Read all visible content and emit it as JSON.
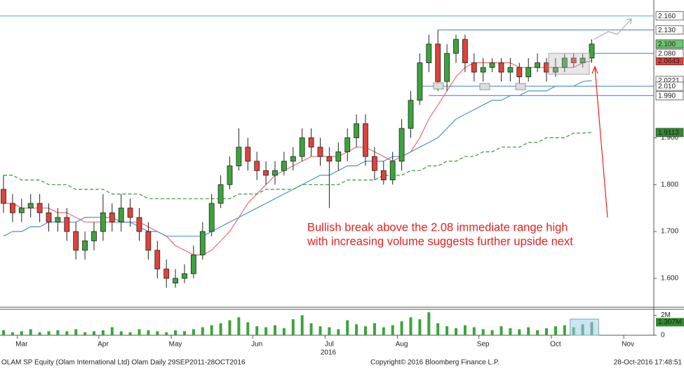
{
  "chart_data": {
    "type": "candlestick",
    "categories": [
      null,
      null,
      "Mar",
      null,
      null,
      null,
      null,
      null,
      null,
      null,
      null,
      "Apr",
      null,
      null,
      null,
      null,
      null,
      null,
      null,
      "May",
      null,
      null,
      null,
      null,
      null,
      null,
      null,
      null,
      "Jun",
      null,
      null,
      null,
      null,
      null,
      null,
      null,
      "Jul",
      null,
      null,
      null,
      null,
      null,
      null,
      null,
      "Aug",
      null,
      null,
      null,
      null,
      null,
      null,
      null,
      null,
      "Sep",
      null,
      null,
      null,
      null,
      null,
      null,
      null,
      "Oct",
      null,
      null,
      null,
      null,
      null,
      null,
      null,
      "Nov",
      null,
      null
    ],
    "year_label": "2016",
    "open": [
      1.79,
      1.76,
      1.74,
      1.75,
      1.76,
      1.74,
      1.72,
      1.73,
      1.7,
      1.66,
      1.68,
      1.7,
      1.74,
      1.72,
      1.75,
      1.73,
      1.7,
      1.66,
      1.62,
      1.59,
      1.6,
      1.61,
      1.65,
      1.7,
      1.76,
      1.8,
      1.84,
      1.88,
      1.85,
      1.83,
      1.82,
      1.83,
      1.85,
      1.86,
      1.9,
      1.88,
      1.86,
      1.85,
      1.87,
      1.9,
      1.93,
      1.86,
      1.83,
      1.81,
      1.85,
      1.92,
      1.98,
      2.06,
      2.1,
      2.02,
      2.08,
      2.11,
      2.06,
      2.04,
      2.05,
      2.06,
      2.04,
      2.05,
      2.03,
      2.05,
      2.06,
      2.04,
      2.05,
      2.07,
      2.06,
      2.07,
      null,
      null,
      null,
      null,
      null,
      null
    ],
    "high": [
      1.82,
      1.78,
      1.77,
      1.78,
      1.78,
      1.76,
      1.75,
      1.75,
      1.72,
      1.7,
      1.72,
      1.78,
      1.76,
      1.78,
      1.77,
      1.75,
      1.72,
      1.68,
      1.64,
      1.62,
      1.63,
      1.67,
      1.72,
      1.78,
      1.82,
      1.86,
      1.92,
      1.9,
      1.87,
      1.85,
      1.85,
      1.87,
      1.88,
      1.92,
      1.92,
      1.9,
      1.88,
      1.89,
      1.92,
      1.95,
      1.95,
      1.88,
      1.85,
      1.87,
      1.94,
      2.0,
      2.08,
      2.12,
      2.13,
      2.1,
      2.12,
      2.12,
      2.08,
      2.07,
      2.07,
      2.07,
      2.07,
      2.06,
      2.07,
      2.08,
      2.07,
      2.07,
      2.08,
      2.08,
      2.08,
      2.11,
      null,
      null,
      null,
      null,
      null,
      null
    ],
    "low": [
      1.74,
      1.72,
      1.72,
      1.73,
      1.72,
      1.7,
      1.7,
      1.68,
      1.64,
      1.64,
      1.66,
      1.68,
      1.7,
      1.7,
      1.71,
      1.68,
      1.64,
      1.6,
      1.58,
      1.58,
      1.59,
      1.6,
      1.64,
      1.69,
      1.75,
      1.79,
      1.83,
      1.83,
      1.81,
      1.8,
      1.8,
      1.82,
      1.83,
      1.85,
      1.86,
      1.84,
      1.75,
      1.83,
      1.85,
      1.88,
      1.84,
      1.81,
      1.8,
      1.8,
      1.83,
      1.9,
      1.97,
      2.04,
      2.0,
      2.0,
      2.06,
      2.04,
      2.02,
      2.02,
      2.04,
      2.02,
      2.02,
      2.01,
      2.02,
      2.04,
      2.02,
      2.03,
      2.04,
      2.05,
      2.05,
      2.06,
      null,
      null,
      null,
      null,
      null,
      null
    ],
    "close": [
      1.76,
      1.74,
      1.75,
      1.76,
      1.74,
      1.72,
      1.73,
      1.7,
      1.66,
      1.68,
      1.7,
      1.74,
      1.72,
      1.75,
      1.73,
      1.7,
      1.66,
      1.62,
      1.6,
      1.6,
      1.61,
      1.65,
      1.7,
      1.76,
      1.8,
      1.84,
      1.88,
      1.85,
      1.83,
      1.82,
      1.83,
      1.85,
      1.86,
      1.9,
      1.88,
      1.86,
      1.85,
      1.87,
      1.9,
      1.93,
      1.86,
      1.83,
      1.81,
      1.85,
      1.92,
      1.98,
      2.06,
      2.1,
      2.02,
      2.08,
      2.11,
      2.06,
      2.04,
      2.05,
      2.06,
      2.04,
      2.05,
      2.03,
      2.05,
      2.06,
      2.04,
      2.05,
      2.07,
      2.06,
      2.07,
      2.1,
      null,
      null,
      null,
      null,
      null,
      null
    ],
    "up_color": "#3aa53a",
    "down_color": "#e2413b",
    "series": [
      {
        "color": "#ef6b6b",
        "dashed": false,
        "values": [
          1.76,
          1.76,
          1.75,
          1.75,
          1.75,
          1.75,
          1.74,
          1.74,
          1.73,
          1.72,
          1.72,
          1.72,
          1.72,
          1.72,
          1.72,
          1.72,
          1.71,
          1.7,
          1.69,
          1.67,
          1.66,
          1.65,
          1.65,
          1.66,
          1.68,
          1.7,
          1.73,
          1.76,
          1.78,
          1.8,
          1.82,
          1.83,
          1.84,
          1.85,
          1.86,
          1.86,
          1.86,
          1.86,
          1.87,
          1.88,
          1.88,
          1.87,
          1.86,
          1.85,
          1.86,
          1.87,
          1.9,
          1.94,
          1.97,
          2.0,
          2.03,
          2.05,
          2.06,
          2.06,
          2.06,
          2.06,
          2.06,
          2.05,
          2.05,
          2.05,
          2.05,
          2.05,
          2.05,
          2.05,
          2.06,
          2.0643,
          null,
          null,
          null,
          null,
          null,
          null
        ]
      },
      {
        "color": "#4a90d9",
        "dashed": false,
        "values": [
          1.69,
          1.7,
          1.7,
          1.71,
          1.71,
          1.72,
          1.72,
          1.72,
          1.72,
          1.73,
          1.73,
          1.73,
          1.73,
          1.72,
          1.72,
          1.71,
          1.7,
          1.7,
          1.69,
          1.69,
          1.69,
          1.69,
          1.69,
          1.7,
          1.71,
          1.72,
          1.73,
          1.74,
          1.75,
          1.76,
          1.77,
          1.78,
          1.79,
          1.8,
          1.81,
          1.82,
          1.82,
          1.83,
          1.84,
          1.84,
          1.85,
          1.85,
          1.85,
          1.86,
          1.86,
          1.87,
          1.88,
          1.89,
          1.9,
          1.92,
          1.94,
          1.95,
          1.96,
          1.97,
          1.98,
          1.98,
          1.99,
          1.99,
          2.0,
          2.0,
          2.0,
          2.01,
          2.01,
          2.01,
          2.02,
          2.0221,
          null,
          null,
          null,
          null,
          null,
          null
        ]
      },
      {
        "color": "#2e9a2e",
        "dashed": true,
        "values": [
          1.82,
          1.82,
          1.81,
          1.81,
          1.81,
          1.8,
          1.8,
          1.8,
          1.79,
          1.79,
          1.79,
          1.79,
          1.78,
          1.78,
          1.78,
          1.78,
          1.77,
          1.77,
          1.77,
          1.77,
          1.77,
          1.77,
          1.77,
          1.77,
          1.77,
          1.77,
          1.78,
          1.78,
          1.78,
          1.79,
          1.79,
          1.79,
          1.79,
          1.8,
          1.8,
          1.8,
          1.8,
          1.8,
          1.81,
          1.81,
          1.81,
          1.81,
          1.82,
          1.82,
          1.82,
          1.83,
          1.83,
          1.84,
          1.84,
          1.85,
          1.85,
          1.86,
          1.86,
          1.87,
          1.87,
          1.88,
          1.88,
          1.88,
          1.89,
          1.89,
          1.9,
          1.9,
          1.9,
          1.91,
          1.91,
          1.9113,
          null,
          null,
          null,
          null,
          null,
          null
        ]
      }
    ],
    "ylim": [
      1.54,
      2.194
    ],
    "yticks": [
      {
        "value": 1.6,
        "label": "1.600"
      },
      {
        "value": 1.7,
        "label": "1.700"
      },
      {
        "value": 1.8,
        "label": "1.800"
      },
      {
        "value": 1.9,
        "label": "1.900"
      }
    ],
    "ma_tags": [
      {
        "value": 2.0643,
        "label": "2.0643",
        "bg": "#e2413b",
        "fg": "#ffffff"
      },
      {
        "value": 2.0221,
        "label": "2.0221",
        "bg": "#ffffff",
        "fg": "#1f5fa8"
      },
      {
        "value": 1.9113,
        "label": "1.9113",
        "bg": "#2e8b2e",
        "fg": "#ffffff"
      }
    ],
    "levels": [
      {
        "value": 2.16,
        "label": "2.160",
        "color": "#3fb8c8"
      },
      {
        "value": 2.13,
        "label": "2.130",
        "color": "#3a78c8"
      },
      {
        "value": 2.08,
        "label": "2.080",
        "color": "#3a78c8"
      },
      {
        "value": 2.01,
        "label": "2.010",
        "color": "#3a78c8"
      },
      {
        "value": 1.99,
        "label": "1.990",
        "color": "#3a78c8"
      }
    ],
    "last_tag": {
      "value": 2.1,
      "label": "2.100",
      "bg": "#6cc66c",
      "fg": "#000000"
    },
    "annotation": [
      "Bullish break above the 2.08 immediate range high",
      "with increasing volume suggests further upside next"
    ],
    "volume": {
      "color": "#3aa53a",
      "ylim": [
        0,
        2.6
      ],
      "yticks": [
        0,
        {
          "value": 2,
          "label": "2M"
        }
      ],
      "last_label": "1.307M",
      "values": [
        0.5,
        0.3,
        0.4,
        0.6,
        0.3,
        0.4,
        0.5,
        0.4,
        0.6,
        0.3,
        0.4,
        0.5,
        0.8,
        0.4,
        0.3,
        0.6,
        0.5,
        0.4,
        0.3,
        0.5,
        0.4,
        0.6,
        0.8,
        1.0,
        1.2,
        1.5,
        1.8,
        1.3,
        0.9,
        0.8,
        1.0,
        0.7,
        1.6,
        2.0,
        1.2,
        0.9,
        0.8,
        0.6,
        1.5,
        1.1,
        0.9,
        1.2,
        0.8,
        1.0,
        1.4,
        1.8,
        1.6,
        2.3,
        1.2,
        0.9,
        0.7,
        1.0,
        0.8,
        0.6,
        0.5,
        0.9,
        0.7,
        0.6,
        0.8,
        0.5,
        0.7,
        0.9,
        1.0,
        0.8,
        1.1,
        1.307,
        null,
        null,
        null,
        null,
        null,
        null
      ]
    },
    "footer": {
      "left": "OLAM SP Equity (Olam International Ltd) Olam  Daily 29SEP2011-28OCT2016",
      "center": "Copyright© 2016 Bloomberg Finance L.P.",
      "right": "28-Oct-2016 17:48:51"
    }
  }
}
